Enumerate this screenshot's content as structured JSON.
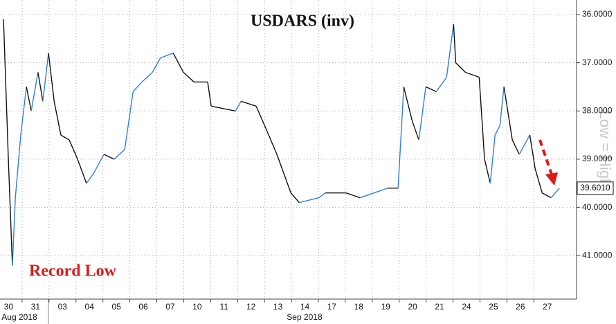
{
  "chart_data": {
    "type": "line",
    "title": "USDARS (inv)",
    "y_inverted": true,
    "up_color": "#2f7fd8",
    "down_color": "#111111",
    "grid": true,
    "xlim": [
      0,
      21.2
    ],
    "ylim": [
      35.7,
      41.9
    ],
    "yticks": [
      {
        "value": 36,
        "label": "36.0000"
      },
      {
        "value": 37,
        "label": "37.0000"
      },
      {
        "value": 38,
        "label": "38.0000"
      },
      {
        "value": 39,
        "label": "39.0000"
      },
      {
        "value": 40,
        "label": "40.0000"
      },
      {
        "value": 41,
        "label": "41.0000"
      }
    ],
    "xticks": [
      {
        "value": 0,
        "label": "30"
      },
      {
        "value": 1,
        "label": "31"
      },
      {
        "value": 2,
        "label": "03"
      },
      {
        "value": 3,
        "label": "04"
      },
      {
        "value": 4,
        "label": "05"
      },
      {
        "value": 5,
        "label": "06"
      },
      {
        "value": 6,
        "label": "07"
      },
      {
        "value": 7,
        "label": "10"
      },
      {
        "value": 8,
        "label": "11"
      },
      {
        "value": 9,
        "label": "12"
      },
      {
        "value": 10,
        "label": "13"
      },
      {
        "value": 11,
        "label": "14"
      },
      {
        "value": 12,
        "label": "17"
      },
      {
        "value": 13,
        "label": "18"
      },
      {
        "value": 14,
        "label": "19"
      },
      {
        "value": 15,
        "label": "20"
      },
      {
        "value": 16,
        "label": "21"
      },
      {
        "value": 17,
        "label": "24"
      },
      {
        "value": 18,
        "label": "25"
      },
      {
        "value": 19,
        "label": "26"
      },
      {
        "value": 20,
        "label": "27"
      }
    ],
    "x_group_labels": [
      "Aug 2018",
      "Sep 2018"
    ],
    "x": [
      0.31,
      0.49,
      0.64,
      0.75,
      0.95,
      1.16,
      1.34,
      1.59,
      1.77,
      1.98,
      2.19,
      2.44,
      2.75,
      3.06,
      3.39,
      3.65,
      4.04,
      4.42,
      4.81,
      5.12,
      5.45,
      5.84,
      6.14,
      6.61,
      6.99,
      7.38,
      7.89,
      8.02,
      8.92,
      9.13,
      9.69,
      10.08,
      10.46,
      10.98,
      11.29,
      12.01,
      12.26,
      13.03,
      13.55,
      14.06,
      14.58,
      14.96,
      15.17,
      15.48,
      15.73,
      15.99,
      16.38,
      16.76,
      17.02,
      17.1,
      17.46,
      17.97,
      18.17,
      18.38,
      18.56,
      18.74,
      18.89,
      19.2,
      19.46,
      19.85,
      20.05,
      20.31,
      20.64,
      20.95
    ],
    "values": [
      36.1,
      39,
      41.2,
      39.8,
      38.5,
      37.5,
      38,
      37.2,
      37.8,
      36.8,
      37.8,
      38.5,
      38.6,
      39,
      39.5,
      39.3,
      38.9,
      39,
      38.8,
      37.6,
      37.4,
      37.2,
      36.9,
      36.8,
      37.2,
      37.4,
      37.4,
      37.9,
      38,
      37.8,
      37.9,
      38.4,
      38.9,
      39.7,
      39.9,
      39.8,
      39.7,
      39.7,
      39.8,
      39.7,
      39.6,
      39.6,
      37.5,
      38.2,
      38.6,
      37.5,
      37.6,
      37.3,
      36.2,
      37,
      37.2,
      37.3,
      39,
      39.5,
      38.5,
      38.3,
      37.5,
      38.6,
      38.9,
      38.5,
      39.2,
      39.7,
      39.8,
      39.6
    ],
    "last_price": {
      "value": 39.601,
      "label": "39.6010"
    },
    "annotations": [
      "Record Low",
      "Low = High"
    ]
  }
}
